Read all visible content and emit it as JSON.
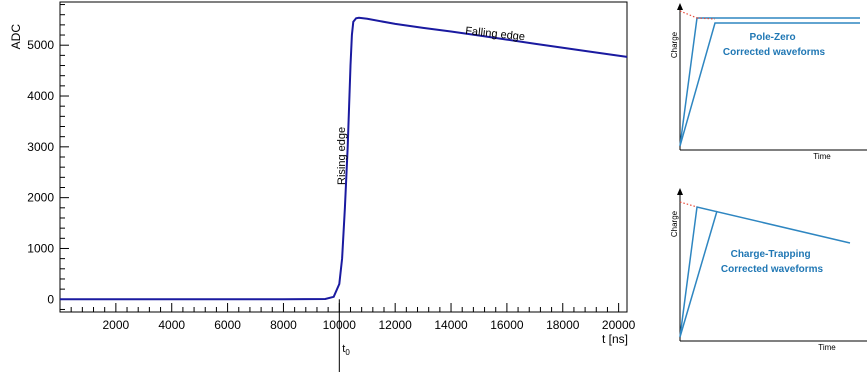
{
  "chart_data": [
    {
      "type": "line",
      "ylabel": "ADC",
      "xlabel": "t [ns]",
      "xlim": [
        0,
        20300
      ],
      "ylim": [
        -250,
        5850
      ],
      "x_ticks": [
        "2000",
        "4000",
        "6000",
        "8000",
        "10000",
        "12000",
        "14000",
        "16000",
        "18000",
        "20000"
      ],
      "y_ticks": [
        "0",
        "1000",
        "2000",
        "3000",
        "4000",
        "5000"
      ],
      "series": [
        {
          "color": "#1a1aa0",
          "x": [
            0,
            2000,
            4000,
            6000,
            8000,
            9500,
            9800,
            10000,
            10100,
            10200,
            10300,
            10350,
            10400,
            10450,
            10500,
            10600,
            10700,
            11000,
            12000,
            13000,
            14000,
            15000,
            16000,
            17000,
            18000,
            19000,
            20300
          ],
          "y": [
            0,
            0,
            0,
            0,
            0,
            5,
            50,
            300,
            800,
            1800,
            3000,
            3800,
            4600,
            5200,
            5460,
            5530,
            5540,
            5520,
            5420,
            5340,
            5270,
            5190,
            5110,
            5030,
            4950,
            4870,
            4770
          ]
        }
      ],
      "annotations": {
        "rising": "Rising edge",
        "falling": "Falling edge",
        "t0": "t",
        "t0_sub": "0"
      },
      "marker_x": 10000
    },
    {
      "type": "line",
      "title": "Pole-Zero\nCorrected waveforms",
      "xlabel": "Time",
      "ylabel": "Charge",
      "x_ticks": [],
      "y_ticks": []
    },
    {
      "type": "line",
      "title": "Charge-Trapping\nCorrected waveforms",
      "xlabel": "Time",
      "ylabel": "Charge",
      "x_ticks": [],
      "y_ticks": []
    }
  ],
  "colors": {
    "wave": "#1a1aa0",
    "schematic": "#2e86c1",
    "dotted": "#e74c3c",
    "label": "#1f77b4"
  }
}
